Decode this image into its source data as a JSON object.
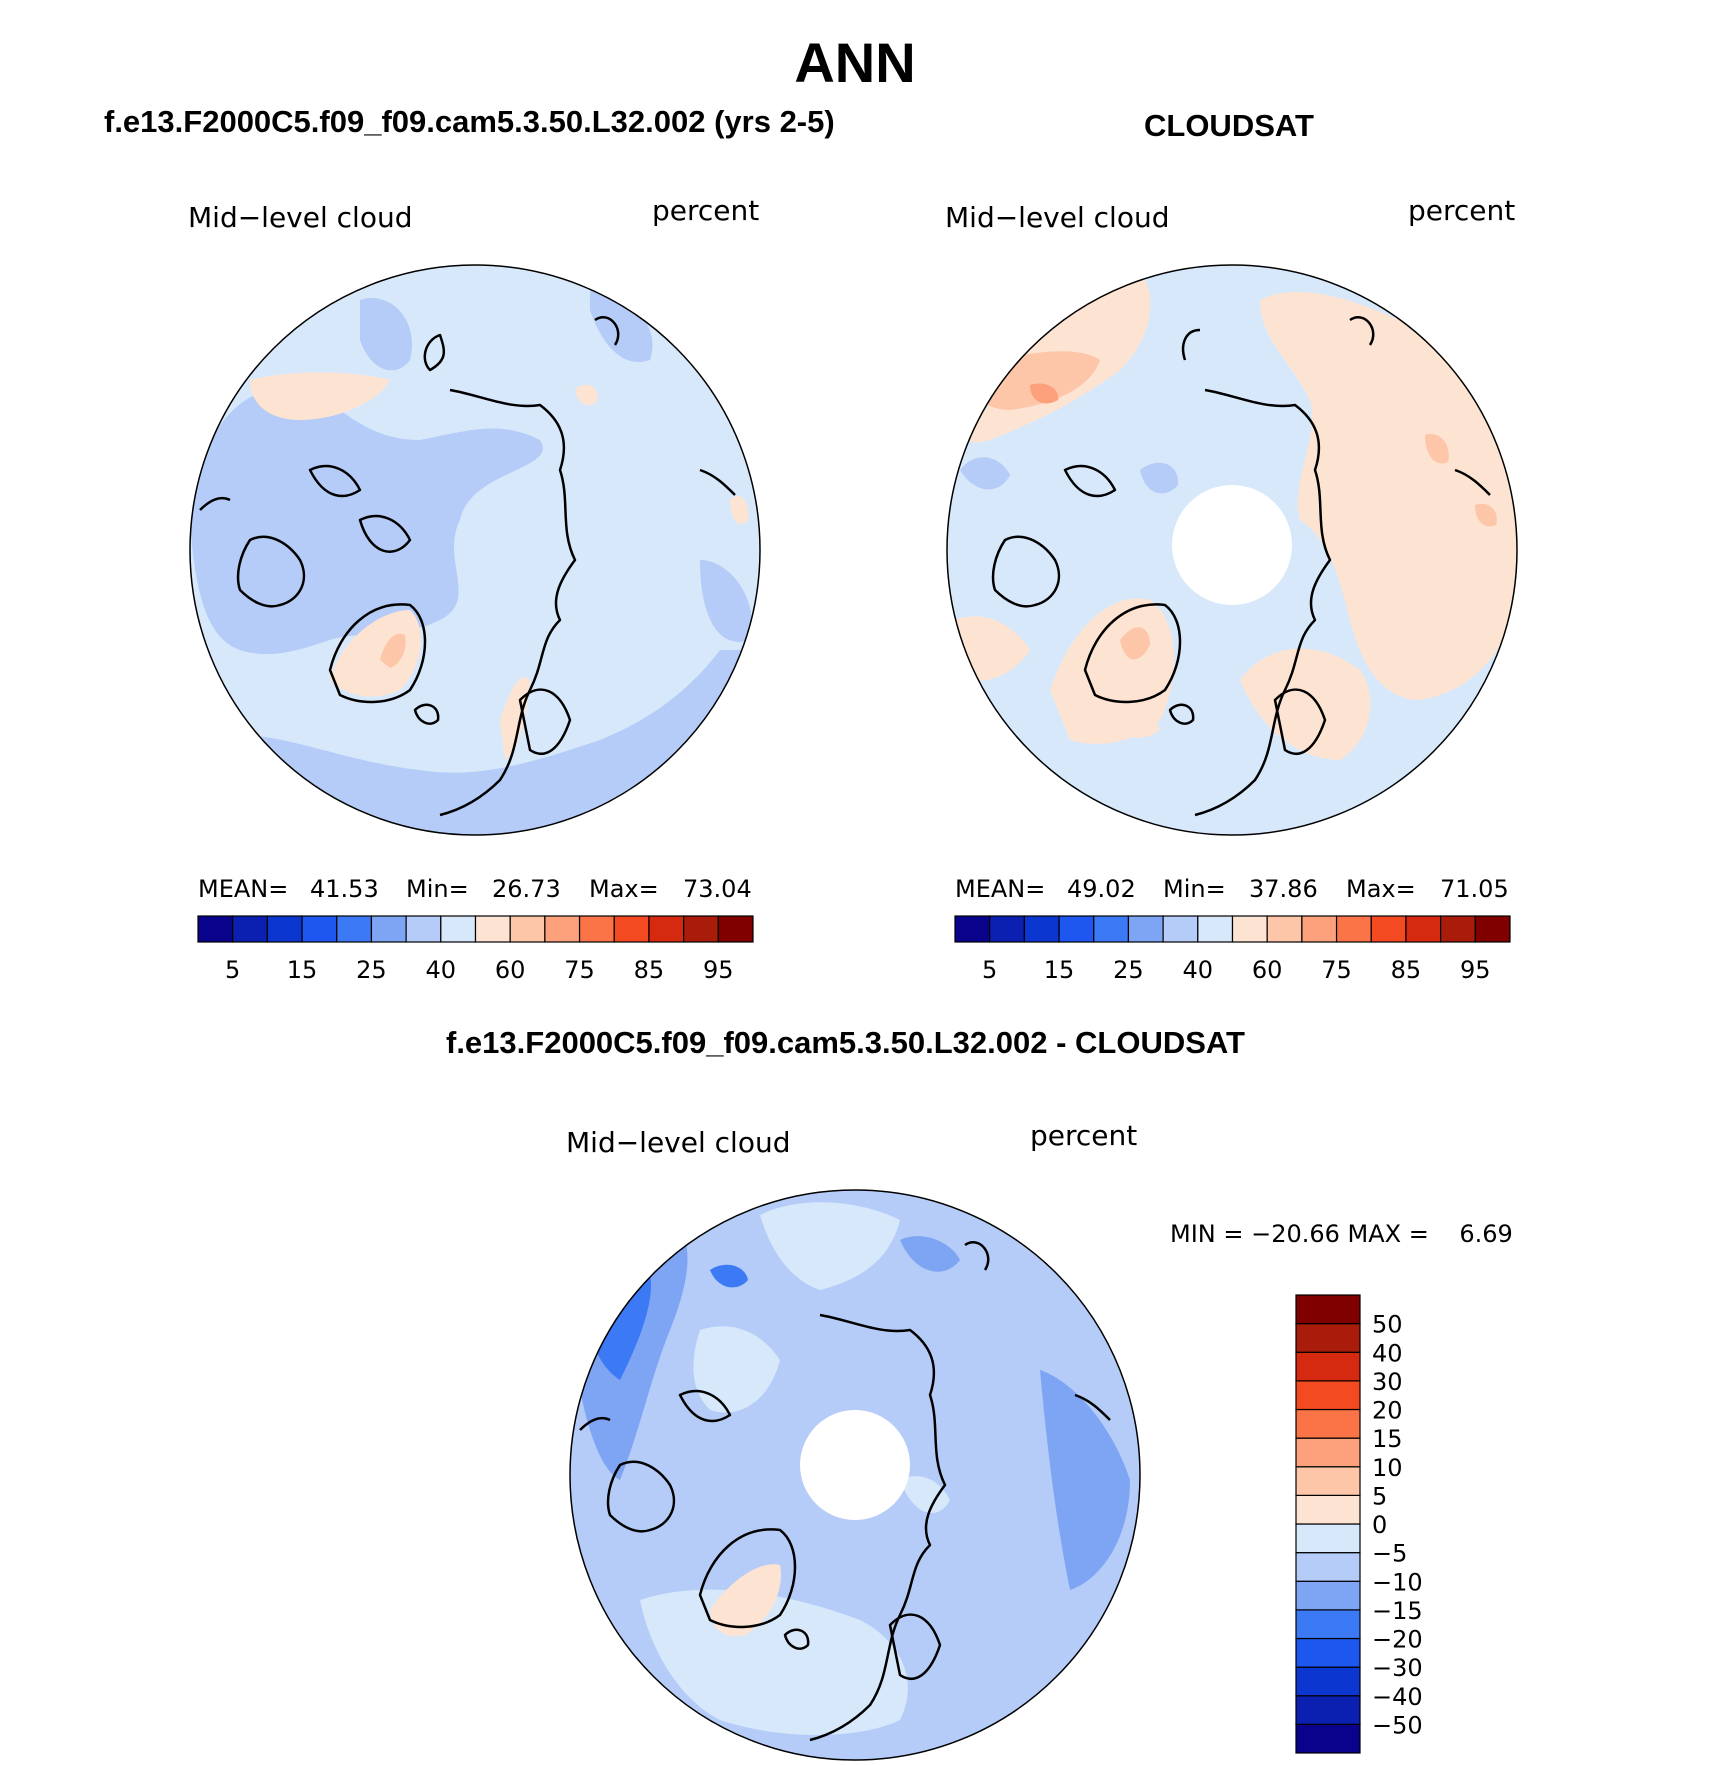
{
  "title": "ANN",
  "panels": {
    "model": {
      "heading": "f.e13.F2000C5.f09_f09.cam5.3.50.L32.002 (yrs 2-5)",
      "variable": "Mid−level cloud",
      "units": "percent",
      "stats": {
        "mean_label": "MEAN=",
        "mean": "41.53",
        "min_label": "Min=",
        "min": "26.73",
        "max_label": "Max=",
        "max": "73.04"
      }
    },
    "obs": {
      "heading": "CLOUDSAT",
      "variable": "Mid−level cloud",
      "units": "percent",
      "stats": {
        "mean_label": "MEAN=",
        "mean": "49.02",
        "min_label": "Min=",
        "min": "37.86",
        "max_label": "Max=",
        "max": "71.05"
      }
    },
    "diff": {
      "heading": "f.e13.F2000C5.f09_f09.cam5.3.50.L32.002 - CLOUDSAT",
      "variable": "Mid−level cloud",
      "units": "percent",
      "stats_text": "MIN = −20.66 MAX =    6.69"
    }
  },
  "colorbars": {
    "abs": {
      "colors": [
        "#08038a",
        "#0b1fb0",
        "#0c36d0",
        "#1e57f0",
        "#3c79f4",
        "#7ea4f4",
        "#b4ccf7",
        "#d8e8fb",
        "#fde4d2",
        "#fdc6a8",
        "#fca17c",
        "#fb7448",
        "#f44a22",
        "#d62a10",
        "#aa1c0a",
        "#800000"
      ],
      "tick_labels": [
        "5",
        "15",
        "25",
        "40",
        "60",
        "75",
        "85",
        "95"
      ]
    },
    "diff": {
      "colors": [
        "#08038a",
        "#0b1fb0",
        "#0c36d0",
        "#1e57f0",
        "#3c79f4",
        "#7ea4f4",
        "#b4ccf7",
        "#d8e8fb",
        "#fde4d2",
        "#fdc6a8",
        "#fca17c",
        "#fb7448",
        "#f44a22",
        "#d62a10",
        "#aa1c0a",
        "#800000"
      ],
      "tick_labels": [
        "−50",
        "−40",
        "−30",
        "−20",
        "−15",
        "−10",
        "−5",
        "0",
        "5",
        "10",
        "15",
        "20",
        "30",
        "40",
        "50"
      ]
    }
  },
  "chart_data": [
    {
      "type": "heatmap",
      "title": "f.e13.F2000C5.f09_f09.cam5.3.50.L32.002 (yrs 2-5)",
      "variable": "Mid-level cloud",
      "units": "percent",
      "projection": "north polar stereographic",
      "levels": [
        5,
        10,
        15,
        20,
        25,
        30,
        40,
        50,
        60,
        70,
        75,
        80,
        85,
        90,
        95
      ],
      "mean": 41.53,
      "min": 26.73,
      "max": 73.04
    },
    {
      "type": "heatmap",
      "title": "CLOUDSAT",
      "variable": "Mid-level cloud",
      "units": "percent",
      "projection": "north polar stereographic",
      "levels": [
        5,
        10,
        15,
        20,
        25,
        30,
        40,
        50,
        60,
        70,
        75,
        80,
        85,
        90,
        95
      ],
      "mean": 49.02,
      "min": 37.86,
      "max": 71.05
    },
    {
      "type": "heatmap",
      "title": "f.e13.F2000C5.f09_f09.cam5.3.50.L32.002 - CLOUDSAT",
      "variable": "Mid-level cloud",
      "units": "percent",
      "projection": "north polar stereographic",
      "levels": [
        -50,
        -40,
        -30,
        -20,
        -15,
        -10,
        -5,
        0,
        5,
        10,
        15,
        20,
        30,
        40,
        50
      ],
      "min": -20.66,
      "max": 6.69
    }
  ]
}
